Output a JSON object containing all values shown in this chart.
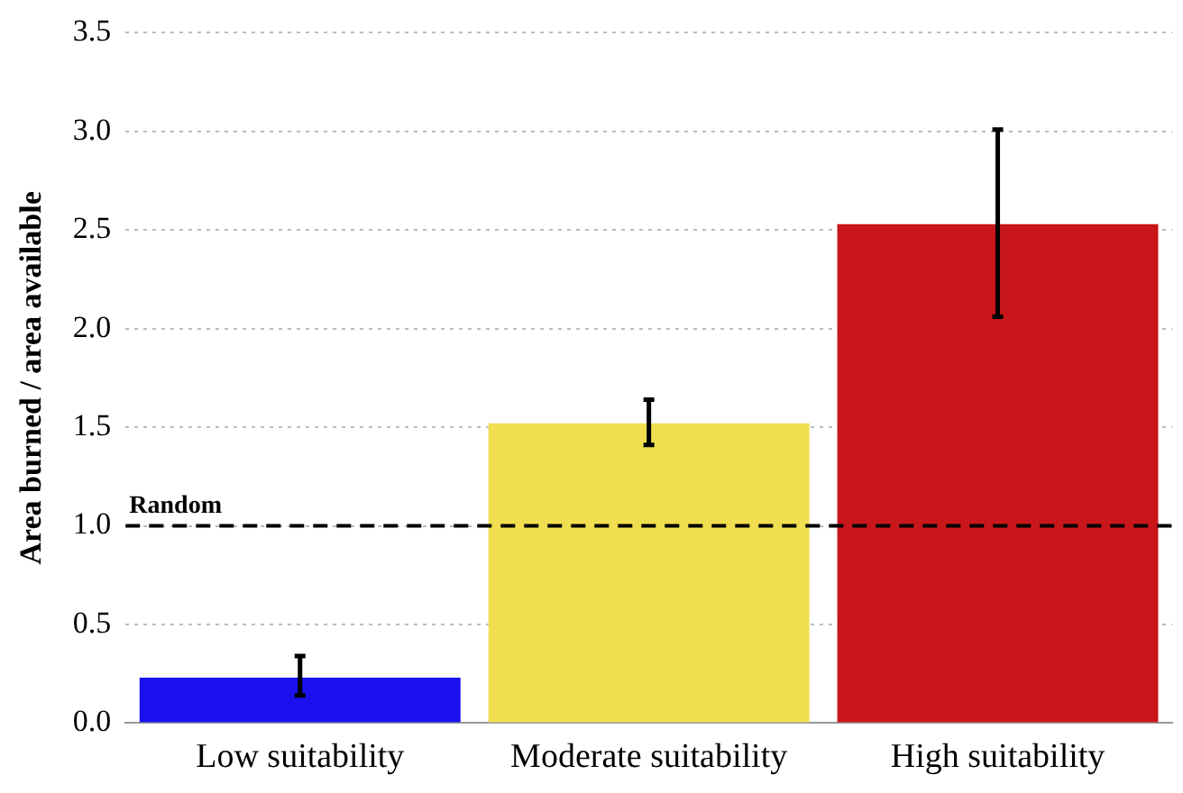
{
  "chart_data": {
    "type": "bar",
    "ylabel": "Area burned / area available",
    "categories": [
      "Low suitability",
      "Moderate suitability",
      "High suitability"
    ],
    "values": [
      0.23,
      1.52,
      2.53
    ],
    "colors": [
      "#1a10f0",
      "#f0de50",
      "#c8161a"
    ],
    "errors": [
      [
        0.14,
        0.34
      ],
      [
        1.41,
        1.64
      ],
      [
        2.06,
        3.01
      ]
    ],
    "ylim": [
      0,
      3.5
    ],
    "yticks": [
      {
        "value": 0,
        "label": "0.0"
      },
      {
        "value": 0.5,
        "label": "0.5"
      },
      {
        "value": 1,
        "label": "1.0"
      },
      {
        "value": 1.5,
        "label": "1.5"
      },
      {
        "value": 2,
        "label": "2.0"
      },
      {
        "value": 2.5,
        "label": "2.5"
      },
      {
        "value": 3,
        "label": "3.0"
      },
      {
        "value": 3.5,
        "label": "3.5"
      }
    ],
    "grid": "y",
    "ref_lines": [
      {
        "axis": "y",
        "value": 1,
        "label": "Random",
        "color": "#000000",
        "line_style": "dashed"
      }
    ]
  }
}
